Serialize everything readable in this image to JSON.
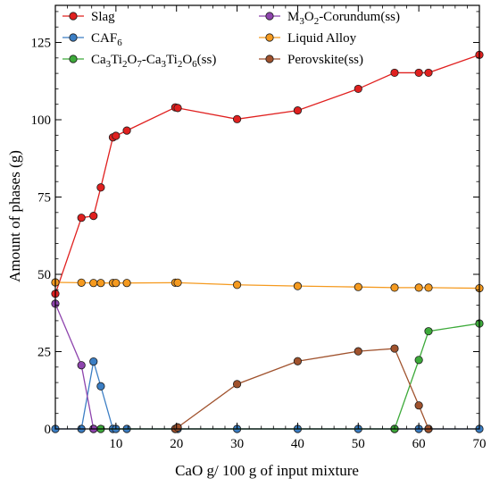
{
  "chart_data": {
    "type": "line",
    "xlabel": "CaO g/ 100 g of input mixture",
    "ylabel": "Amount of phases (g)",
    "xlim": [
      0,
      70
    ],
    "ylim": [
      0,
      137
    ],
    "x_ticks": [
      10,
      20,
      30,
      40,
      50,
      60,
      70
    ],
    "y_ticks": [
      0,
      25,
      50,
      75,
      100,
      125
    ],
    "grid": false,
    "legend": "top, two columns",
    "series": [
      {
        "name": "Slag",
        "label_main": "Slag",
        "color": "#e0201f",
        "x": [
          0,
          4.3,
          6.3,
          7.5,
          9.5,
          10,
          11.8,
          19.8,
          20.2,
          30,
          40,
          50,
          56,
          60,
          61.6,
          70
        ],
        "y": [
          43.7,
          68.3,
          68.9,
          78.1,
          94.3,
          94.8,
          96.5,
          104,
          103.8,
          100.2,
          103,
          110,
          115.2,
          115.2,
          115.2,
          121
        ]
      },
      {
        "name": "CAF6",
        "label_main": "CAF",
        "label_sub": "6",
        "color": "#3b7ec4",
        "x": [
          0,
          4.3,
          6.3,
          7.5,
          9.5,
          10,
          11.8,
          19.8,
          20.2,
          30,
          40,
          50,
          56,
          60,
          61.6,
          70
        ],
        "y": [
          0,
          0,
          21.8,
          13.8,
          0,
          0,
          0,
          0,
          0,
          0,
          0,
          0,
          0,
          0,
          0,
          0
        ]
      },
      {
        "name": "Ca3Ti2O7-Ca3Ti2O6(ss)",
        "label_main": "Ca3Ti2O7-Ca3Ti2O6(ss)",
        "color": "#3daa3a",
        "x": [
          6.3,
          7.5,
          56,
          60,
          61.6,
          70
        ],
        "y": [
          0,
          0,
          0,
          22.3,
          31.6,
          34.1
        ]
      },
      {
        "name": "M3O2-Corundum(ss)",
        "label_main": "M3O2-Corundum(ss)",
        "color": "#8e44ad",
        "x": [
          0,
          4.3,
          6.3
        ],
        "y": [
          40.5,
          20.6,
          0
        ]
      },
      {
        "name": "Liquid Alloy",
        "label_main": "Liquid Alloy",
        "color": "#f59a1f",
        "x": [
          0,
          4.3,
          6.3,
          7.5,
          9.5,
          10,
          11.8,
          19.8,
          20.2,
          30,
          40,
          50,
          56,
          60,
          61.6,
          70
        ],
        "y": [
          47.4,
          47.3,
          47.2,
          47.2,
          47.2,
          47.2,
          47.2,
          47.3,
          47.3,
          46.6,
          46.2,
          45.9,
          45.7,
          45.7,
          45.7,
          45.5
        ]
      },
      {
        "name": "Perovskite(ss)",
        "label_main": "Perovskite(ss)",
        "color": "#a0522d",
        "x": [
          19.8,
          20.2,
          30,
          40,
          50,
          56,
          60,
          61.6
        ],
        "y": [
          0,
          0.5,
          14.5,
          21.9,
          25.1,
          26,
          7.6,
          0
        ]
      }
    ]
  }
}
